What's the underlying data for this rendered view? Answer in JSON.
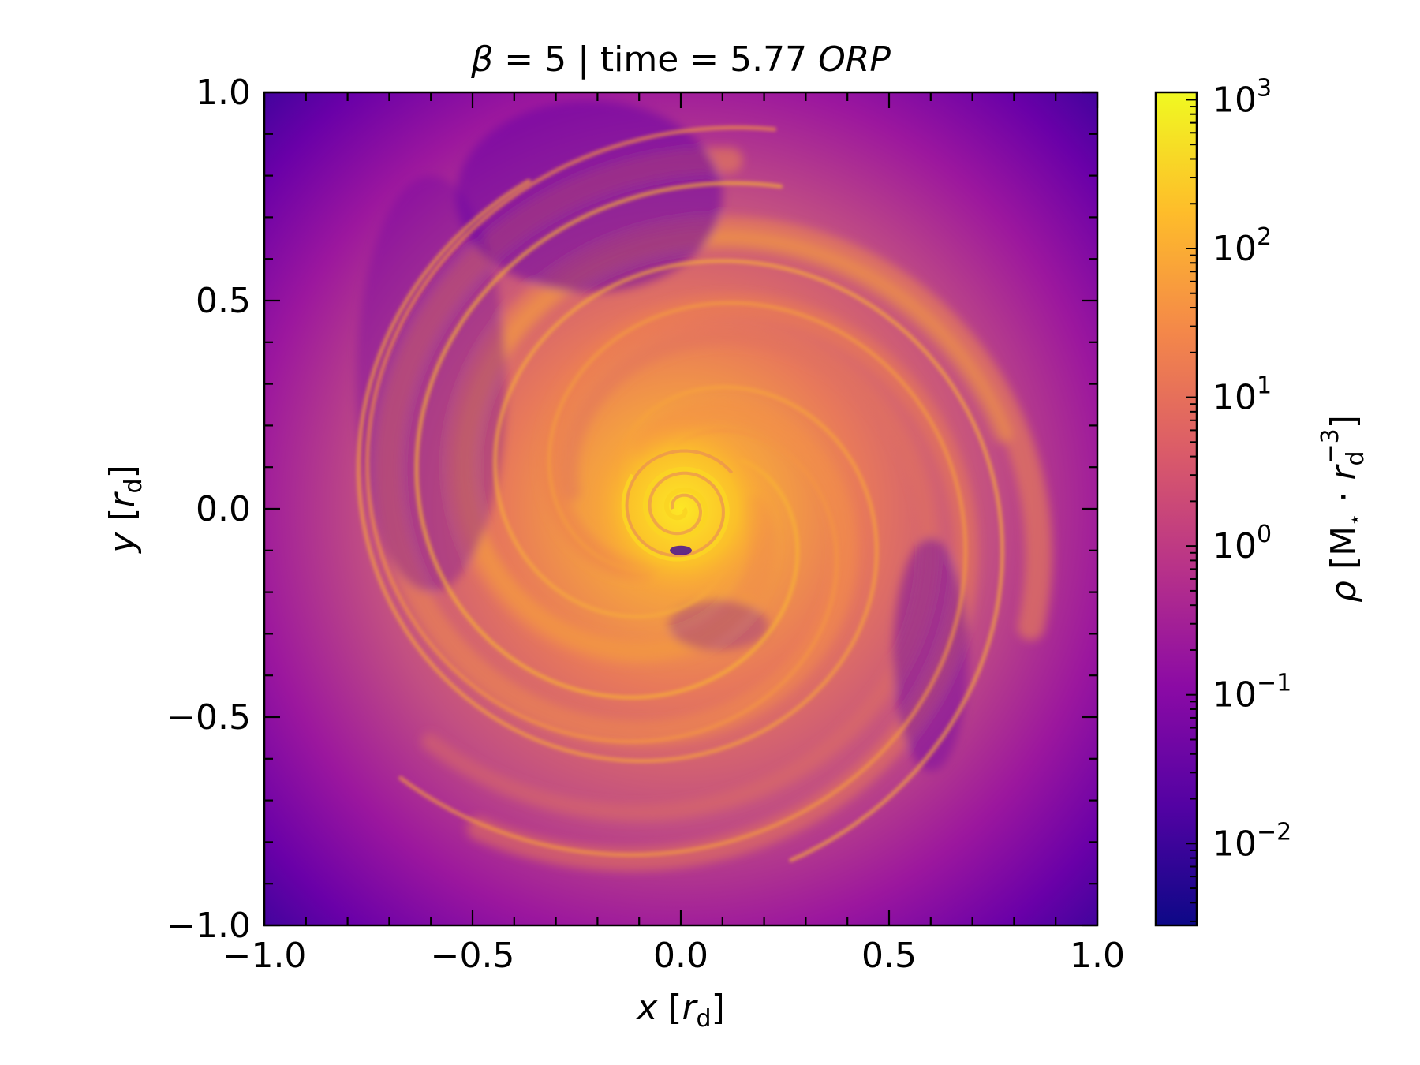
{
  "chart_data": {
    "type": "heatmap",
    "title": {
      "beta_symbol": "β",
      "beta_value": "= 5 | time = 5.77",
      "unit": "ORP"
    },
    "xlabel": {
      "var": "x",
      "open": "[",
      "sym": "r",
      "sub": "d",
      "close": "]"
    },
    "ylabel": {
      "var": "y",
      "open": "[",
      "sym": "r",
      "sub": "d",
      "close": "]"
    },
    "xlim": [
      -1.0,
      1.0
    ],
    "ylim": [
      -1.0,
      1.0
    ],
    "xticks": [
      {
        "value": -1.0,
        "label": "−1.0"
      },
      {
        "value": -0.5,
        "label": "−0.5"
      },
      {
        "value": 0.0,
        "label": "0.0"
      },
      {
        "value": 0.5,
        "label": "0.5"
      },
      {
        "value": 1.0,
        "label": "1.0"
      }
    ],
    "yticks": [
      {
        "value": -1.0,
        "label": "−1.0"
      },
      {
        "value": -0.5,
        "label": "−0.5"
      },
      {
        "value": 0.0,
        "label": "0.0"
      },
      {
        "value": 0.5,
        "label": "0.5"
      },
      {
        "value": 1.0,
        "label": "1.0"
      }
    ],
    "minor_tick_step": 0.1,
    "field": "gas density ρ, logarithmic spiral-arm disk structure centered at origin",
    "colorbar": {
      "label": {
        "sym": "ρ",
        "open": "[M",
        "star": "⋆",
        "dot": " · ",
        "r": "r",
        "sub": "d",
        "sup": "−3",
        "close": "]"
      },
      "scale": "log",
      "range_log10": [
        -2.55,
        3.05
      ],
      "ticks": [
        {
          "exp": -2,
          "base": "10",
          "sup": "−2"
        },
        {
          "exp": -1,
          "base": "10",
          "sup": "−1"
        },
        {
          "exp": 0,
          "base": "10",
          "sup": "0"
        },
        {
          "exp": 1,
          "base": "10",
          "sup": "1"
        },
        {
          "exp": 2,
          "base": "10",
          "sup": "2"
        },
        {
          "exp": 3,
          "base": "10",
          "sup": "3"
        }
      ],
      "colormap": "plasma",
      "colors": [
        "#0d0887",
        "#5302a3",
        "#8b0aa5",
        "#b83289",
        "#db5c68",
        "#f48849",
        "#febd2a",
        "#f0f921"
      ]
    }
  }
}
